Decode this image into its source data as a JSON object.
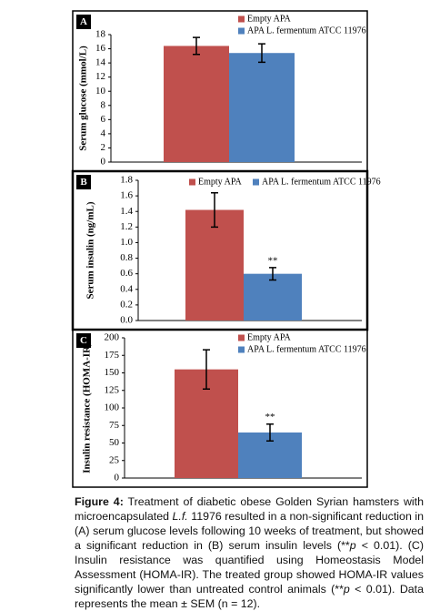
{
  "chart_data": [
    {
      "type": "bar",
      "panel": "A",
      "ylabel": "Serum glucose (mmol/L)",
      "ylim": [
        0,
        18
      ],
      "yticks": [
        0,
        2,
        4,
        6,
        8,
        10,
        12,
        14,
        16,
        18
      ],
      "legend": "upper right",
      "series": [
        {
          "name": "Empty APA",
          "color": "#c0504d",
          "values": [
            16.4
          ],
          "errors": [
            1.2
          ]
        },
        {
          "name": "APA L. fermentum ATCC 11976",
          "color": "#4f81bd",
          "values": [
            15.4
          ],
          "errors": [
            1.3
          ]
        }
      ]
    },
    {
      "type": "bar",
      "panel": "B",
      "ylabel": "Serum insulin (ng/mL)",
      "ylim": [
        0,
        1.8
      ],
      "yticks": [
        {
          "value": 0,
          "label": "0.0"
        },
        0.2,
        0.4,
        0.6,
        0.8,
        {
          "value": 1,
          "label": "1.0"
        },
        1.2,
        1.4,
        1.6,
        1.8
      ],
      "legend": "top",
      "series": [
        {
          "name": "Empty APA",
          "color": "#c0504d",
          "values": [
            1.42
          ],
          "errors": [
            0.22
          ]
        },
        {
          "name": "APA L. fermentum ATCC 11976",
          "color": "#4f81bd",
          "values": [
            0.6
          ],
          "errors": [
            0.08
          ],
          "significance": "**"
        }
      ]
    },
    {
      "type": "bar",
      "panel": "C",
      "ylabel": "Insulin resistance (HOMA-IR)",
      "ylim": [
        0,
        200
      ],
      "yticks": [
        0,
        25,
        50,
        75,
        100,
        125,
        150,
        175,
        200
      ],
      "legend": "upper right",
      "series": [
        {
          "name": "Empty APA",
          "color": "#c0504d",
          "values": [
            155
          ],
          "errors": [
            28
          ]
        },
        {
          "name": "APA L. fermentum ATCC 11976",
          "color": "#4f81bd",
          "values": [
            65
          ],
          "errors": [
            12
          ],
          "significance": "**"
        }
      ]
    }
  ],
  "caption": [
    "Figure 4:",
    " Treatment of diabetic obese Golden Syrian hamsters with microencapsulated ",
    "L.f.",
    " 11976  resulted in a non-significant reduction in (A) serum glucose levels following 10 weeks of treatment, but showed a significant reduction in (B) serum insulin levels (**",
    "p",
    " < 0.01). (C) Insulin resistance was quantified using Homeostasis Model Assessment (HOMA-IR). The treated group showed HOMA-IR values significantly lower than untreated control animals (**",
    "p",
    " < 0.01). Data represents the mean ± SEM (n = 12)."
  ]
}
